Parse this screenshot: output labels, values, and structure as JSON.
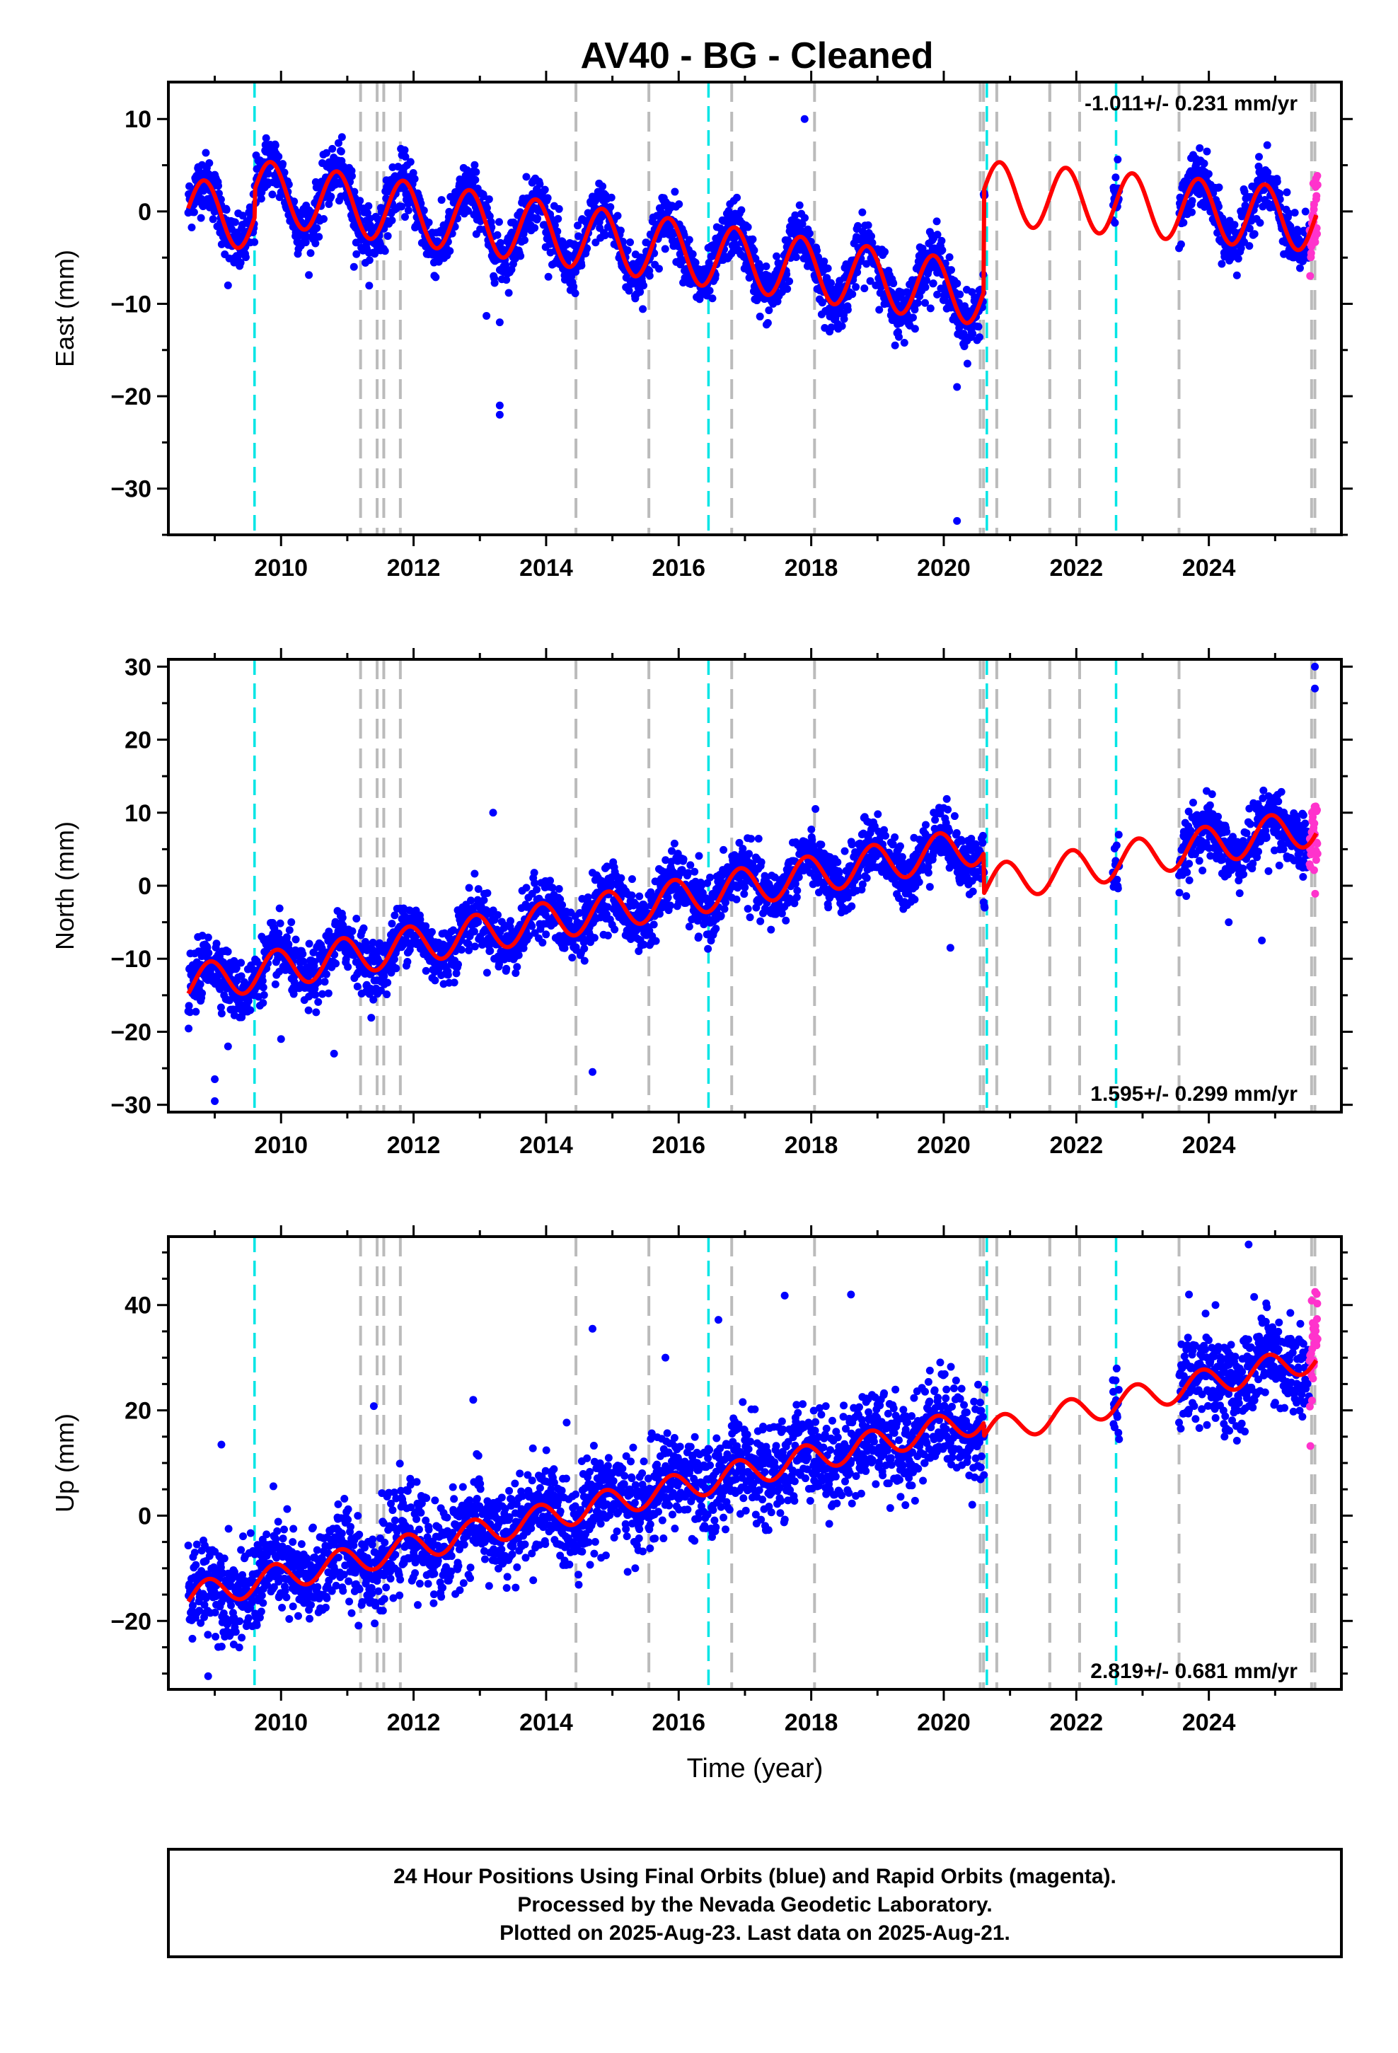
{
  "title": "AV40  - BG - Cleaned",
  "footer": {
    "lines": [
      "24 Hour Positions Using Final Orbits (blue) and Rapid Orbits (magenta).",
      "Processed by the Nevada Geodetic Laboratory.",
      "Plotted on 2025-Aug-23. Last data on 2025-Aug-21."
    ]
  },
  "colors": {
    "final": "#0000ff",
    "rapid": "#ff33cc",
    "model": "#ff0000",
    "equipment_change": "#00e5e5",
    "other_offset": "#bbbbbb"
  },
  "chart_data": [
    {
      "type": "scatter",
      "component": "east",
      "ylabel": "East (mm)",
      "xlim": [
        2008.3,
        2026.0
      ],
      "ylim": [
        -35,
        14
      ],
      "xticks": [
        2010,
        2012,
        2014,
        2016,
        2018,
        2020,
        2022,
        2024
      ],
      "yticks": [
        10,
        0,
        -10,
        -20,
        -30
      ],
      "rate_label": "-1.011+/- 0.231 mm/yr",
      "rate_position": "top-right",
      "model": {
        "intercept": 0.2,
        "velocity": -1.011,
        "ref_year": 2008.6,
        "annual_amp": 3.4,
        "annual_phase": 2.55,
        "step_2009_6": 3.0,
        "step_2020_6": 11.0,
        "post_step_velocity": -0.6
      },
      "outliers": [
        [
          2009.2,
          -8
        ],
        [
          2013.1,
          -11.3
        ],
        [
          2013.3,
          -12
        ],
        [
          2013.3,
          -21
        ],
        [
          2013.3,
          -22
        ],
        [
          2017.9,
          10
        ],
        [
          2020.2,
          -19
        ],
        [
          2020.2,
          -33.5
        ],
        [
          2019.9,
          -9
        ],
        [
          2011.1,
          -6
        ]
      ]
    },
    {
      "type": "scatter",
      "component": "north",
      "ylabel": "North (mm)",
      "xlim": [
        2008.3,
        2026.0
      ],
      "ylim": [
        -31,
        31
      ],
      "xticks": [
        2010,
        2012,
        2014,
        2016,
        2018,
        2020,
        2022,
        2024
      ],
      "yticks": [
        30,
        20,
        10,
        0,
        -10,
        -20,
        -30
      ],
      "rate_label": "1.595+/- 0.299 mm/yr",
      "rate_position": "bottom-right",
      "model": {
        "intercept": -13.5,
        "velocity": 1.595,
        "ref_year": 2008.6,
        "annual_amp": 2.6,
        "annual_phase": 2.0
      },
      "outliers": [
        [
          2009.0,
          -29.5
        ],
        [
          2009.0,
          -26.5
        ],
        [
          2009.2,
          -22
        ],
        [
          2010.0,
          -21
        ],
        [
          2010.8,
          -23
        ],
        [
          2013.2,
          10
        ],
        [
          2014.7,
          -25.5
        ],
        [
          2020.1,
          -8.5
        ],
        [
          2024.3,
          -5
        ],
        [
          2024.8,
          -7.5
        ],
        [
          2024.9,
          2
        ],
        [
          2025.6,
          30
        ],
        [
          2025.6,
          27
        ]
      ]
    },
    {
      "type": "scatter",
      "component": "up",
      "ylabel": "Up (mm)",
      "xlim": [
        2008.3,
        2026.0
      ],
      "ylim": [
        -33,
        53
      ],
      "xticks": [
        2010,
        2012,
        2014,
        2016,
        2018,
        2020,
        2022,
        2024
      ],
      "yticks": [
        40,
        20,
        0,
        -20
      ],
      "rate_label": "2.819+/- 0.681 mm/yr",
      "rate_position": "bottom-right",
      "xlabel": "Time (year)",
      "model": {
        "intercept": -15.5,
        "velocity": 2.819,
        "ref_year": 2008.6,
        "annual_amp": 2.6,
        "annual_phase": 2.2
      },
      "outliers": [
        [
          2008.9,
          -30.5
        ],
        [
          2009.1,
          13.5
        ],
        [
          2011.4,
          20.8
        ],
        [
          2012.9,
          22
        ],
        [
          2014.7,
          35.5
        ],
        [
          2015.8,
          30
        ],
        [
          2016.6,
          37.2
        ],
        [
          2017.6,
          41.8
        ],
        [
          2018.6,
          42
        ],
        [
          2024.6,
          51.5
        ],
        [
          2023.7,
          42
        ],
        [
          2024.1,
          40
        ]
      ]
    }
  ],
  "offsets": {
    "equipment_change": [
      2009.6,
      2016.45,
      2020.65,
      2022.6
    ],
    "other": [
      2011.2,
      2011.45,
      2011.55,
      2011.8,
      2014.45,
      2015.55,
      2016.8,
      2018.05,
      2020.55,
      2020.6,
      2020.8,
      2021.6,
      2021.6,
      2022.05,
      2023.55,
      2025.55,
      2025.6
    ]
  }
}
